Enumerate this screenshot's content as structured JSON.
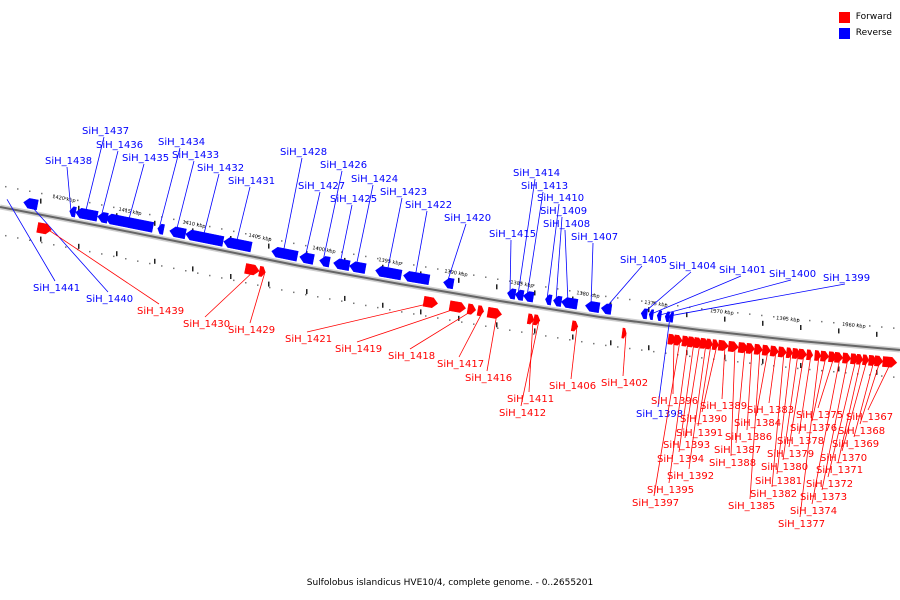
{
  "caption": "Sulfolobus islandicus HVE10/4, complete genome. - 0..2655201",
  "legend": [
    {
      "label": "Forward",
      "color": "#ff0000"
    },
    {
      "label": "Reverse",
      "color": "#0000ff"
    }
  ],
  "colors": {
    "forward": "#ff0000",
    "reverse": "#0000ff",
    "axis": "#888888"
  },
  "scale_labels": [
    "1420 kbp",
    "1415 kbp",
    "1410 kbp",
    "1405 kbp",
    "1400 kbp",
    "1395 kbp",
    "1390 kbp",
    "1385 kbp",
    "1380 kbp",
    "1375 kbp",
    "1370 kbp",
    "1365 kbp",
    "1360 kbp"
  ],
  "reverse_genes": [
    "SiH_1441",
    "SiH_1440",
    "SiH_1438",
    "SiH_1437",
    "SiH_1436",
    "SiH_1435",
    "SiH_1434",
    "SiH_1433",
    "SiH_1432",
    "SiH_1431",
    "SiH_1428",
    "SiH_1427",
    "SiH_1426",
    "SiH_1425",
    "SiH_1424",
    "SiH_1423",
    "SiH_1422",
    "SiH_1420",
    "SiH_1415",
    "SiH_1414",
    "SiH_1413",
    "SiH_1410",
    "SiH_1409",
    "SiH_1408",
    "SiH_1407",
    "SiH_1405",
    "SiH_1404",
    "SiH_1401",
    "SiH_1400",
    "SiH_1399",
    "SiH_1398"
  ],
  "forward_genes": [
    "SiH_1439",
    "SiH_1430",
    "SiH_1429",
    "SiH_1421",
    "SiH_1419",
    "SiH_1418",
    "SiH_1417",
    "SiH_1416",
    "SiH_1411",
    "SiH_1412",
    "SiH_1406",
    "SiH_1402",
    "SiH_1396",
    "SiH_1397",
    "SiH_1395",
    "SiH_1394",
    "SiH_1393",
    "SiH_1392",
    "SiH_1391",
    "SiH_1390",
    "SiH_1389",
    "SiH_1388",
    "SiH_1387",
    "SiH_1386",
    "SiH_1385",
    "SiH_1384",
    "SiH_1383",
    "SiH_1382",
    "SiH_1381",
    "SiH_1380",
    "SiH_1379",
    "SiH_1378",
    "SiH_1377",
    "SiH_1376",
    "SiH_1375",
    "SiH_1374",
    "SiH_1373",
    "SiH_1372",
    "SiH_1371",
    "SiH_1370",
    "SiH_1369",
    "SiH_1368",
    "SiH_1367"
  ]
}
